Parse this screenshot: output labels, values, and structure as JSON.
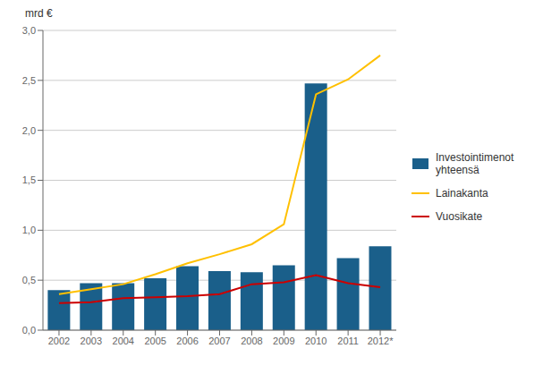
{
  "chart_data": {
    "type": "bar",
    "ylabel": "mrd €",
    "categories": [
      "2002",
      "2003",
      "2004",
      "2005",
      "2006",
      "2007",
      "2008",
      "2009",
      "2010",
      "2011",
      "2012*"
    ],
    "series": [
      {
        "name": "Investointimenot\nyhteensä",
        "type": "bar",
        "color": "#1A5F8A",
        "values": [
          0.4,
          0.47,
          0.47,
          0.52,
          0.64,
          0.59,
          0.58,
          0.65,
          2.47,
          0.72,
          0.84
        ]
      },
      {
        "name": "Lainakanta",
        "type": "line",
        "color": "#FFC000",
        "values": [
          0.36,
          0.41,
          0.46,
          0.56,
          0.67,
          0.76,
          0.86,
          1.06,
          2.36,
          2.51,
          2.75
        ]
      },
      {
        "name": "Vuosikate",
        "type": "line",
        "color": "#CC0000",
        "values": [
          0.27,
          0.28,
          0.32,
          0.33,
          0.34,
          0.36,
          0.46,
          0.48,
          0.55,
          0.47,
          0.43
        ]
      }
    ],
    "ylim": [
      0,
      3.0
    ],
    "yticks": [
      {
        "value": 0.0,
        "label": "0,0"
      },
      {
        "value": 0.5,
        "label": "0,5"
      },
      {
        "value": 1.0,
        "label": "1,0"
      },
      {
        "value": 1.5,
        "label": "1,5"
      },
      {
        "value": 2.0,
        "label": "2,0"
      },
      {
        "value": 2.5,
        "label": "2,5"
      },
      {
        "value": 3.0,
        "label": "3,0"
      }
    ],
    "grid": true,
    "legend": "right"
  }
}
